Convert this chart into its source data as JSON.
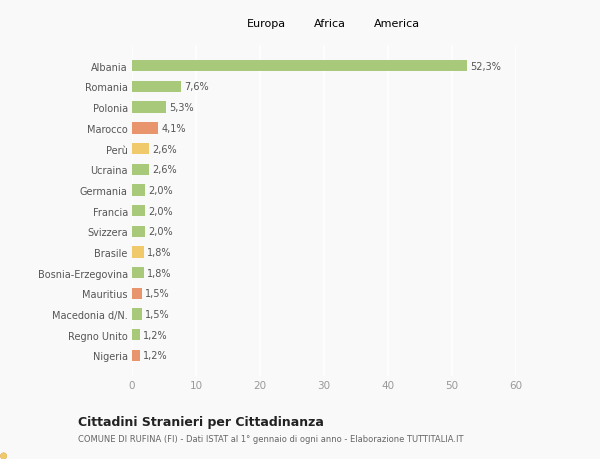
{
  "categories": [
    "Nigeria",
    "Regno Unito",
    "Macedonia d/N.",
    "Mauritius",
    "Bosnia-Erzegovina",
    "Brasile",
    "Svizzera",
    "Francia",
    "Germania",
    "Ucraina",
    "Perù",
    "Marocco",
    "Polonia",
    "Romania",
    "Albania"
  ],
  "values": [
    1.2,
    1.2,
    1.5,
    1.5,
    1.8,
    1.8,
    2.0,
    2.0,
    2.0,
    2.6,
    2.6,
    4.1,
    5.3,
    7.6,
    52.3
  ],
  "labels": [
    "1,2%",
    "1,2%",
    "1,5%",
    "1,5%",
    "1,8%",
    "1,8%",
    "2,0%",
    "2,0%",
    "2,0%",
    "2,6%",
    "2,6%",
    "4,1%",
    "5,3%",
    "7,6%",
    "52,3%"
  ],
  "colors": [
    "#e8956d",
    "#a8c87a",
    "#a8c87a",
    "#e8956d",
    "#a8c87a",
    "#f0c96a",
    "#a8c87a",
    "#a8c87a",
    "#a8c87a",
    "#a8c87a",
    "#f0c96a",
    "#e8956d",
    "#a8c87a",
    "#a8c87a",
    "#a8c87a"
  ],
  "legend_labels": [
    "Europa",
    "Africa",
    "America"
  ],
  "legend_colors": [
    "#a8c87a",
    "#e8956d",
    "#f0c96a"
  ],
  "xlim": [
    0,
    60
  ],
  "xticks": [
    0,
    10,
    20,
    30,
    40,
    50,
    60
  ],
  "title": "Cittadini Stranieri per Cittadinanza",
  "subtitle": "COMUNE DI RUFINA (FI) - Dati ISTAT al 1° gennaio di ogni anno - Elaborazione TUTTITALIA.IT",
  "bg_color": "#f9f9f9",
  "grid_color": "#ffffff",
  "bar_height": 0.55
}
